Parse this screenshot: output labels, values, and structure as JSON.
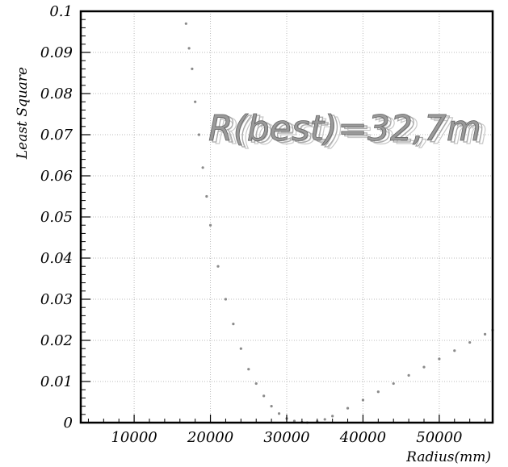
{
  "chart_data": {
    "type": "scatter",
    "title": "",
    "xlabel": "Radius(mm)",
    "ylabel": "Least Square",
    "xlim": [
      3000,
      57000
    ],
    "ylim": [
      0,
      0.1
    ],
    "x_ticks": [
      10000,
      20000,
      30000,
      40000,
      50000
    ],
    "x_tick_labels": [
      "10000",
      "20000",
      "30000",
      "40000",
      "50000"
    ],
    "y_ticks": [
      0,
      0.01,
      0.02,
      0.03,
      0.04,
      0.05,
      0.06,
      0.07,
      0.08,
      0.09,
      0.1
    ],
    "y_tick_labels": [
      "0",
      "0.01",
      "0.02",
      "0.03",
      "0.04",
      "0.05",
      "0.06",
      "0.07",
      "0.08",
      "0.09",
      "0.1"
    ],
    "grid": true,
    "annotation": "R(best)=32,7m",
    "series": [
      {
        "color": "#8a8a8a",
        "x": [
          16800,
          17200,
          17600,
          18000,
          18500,
          19000,
          19500,
          20000,
          21000,
          22000,
          23000,
          24000,
          25000,
          26000,
          27000,
          28000,
          29000,
          30000,
          31000,
          32000,
          32700,
          34000,
          35000,
          36000,
          38000,
          40000,
          42000,
          44000,
          46000,
          48000,
          50000,
          52000,
          54000,
          56000,
          57000
        ],
        "y": [
          0.097,
          0.091,
          0.086,
          0.078,
          0.07,
          0.062,
          0.055,
          0.048,
          0.038,
          0.03,
          0.024,
          0.018,
          0.013,
          0.0095,
          0.0065,
          0.004,
          0.0022,
          0.001,
          0.0004,
          0.0001,
          0.0,
          0.0003,
          0.0008,
          0.0016,
          0.0035,
          0.0055,
          0.0075,
          0.0095,
          0.0115,
          0.0135,
          0.0155,
          0.0175,
          0.0195,
          0.0215,
          0.0225
        ]
      }
    ]
  }
}
